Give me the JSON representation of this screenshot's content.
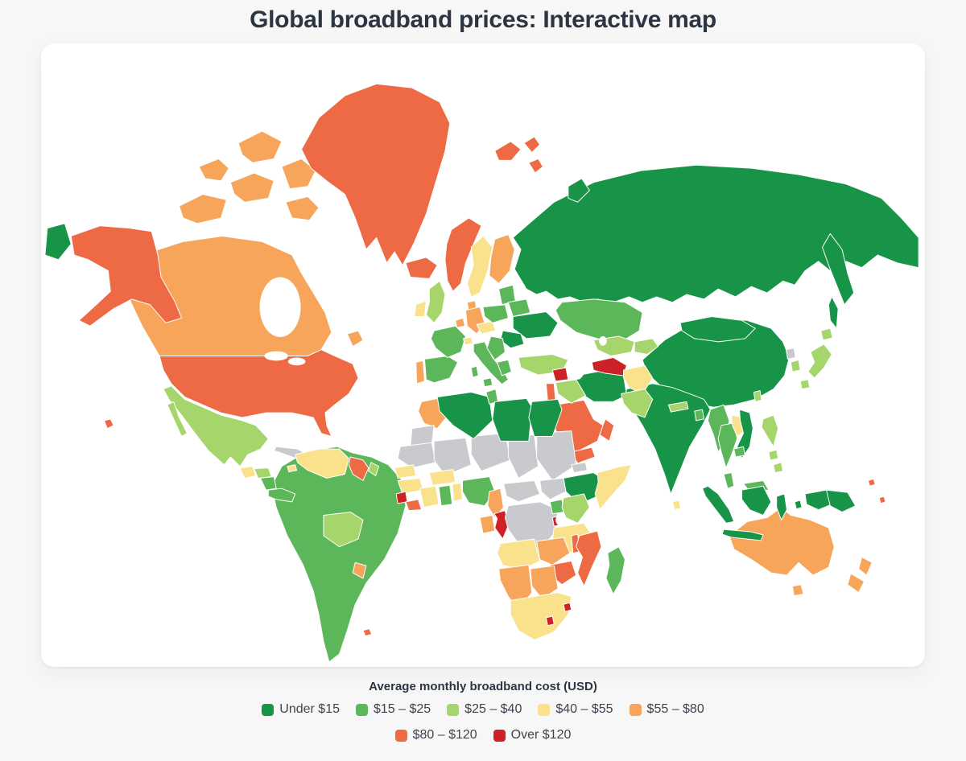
{
  "page": {
    "title": "Global broadband prices: Interactive map"
  },
  "chart_data": {
    "type": "choropleth-map",
    "title": "Global broadband prices: Interactive map",
    "legend_title": "Average monthly broadband cost (USD)",
    "categories": [
      {
        "id": "c1",
        "label": "Under $15",
        "color": "#179447"
      },
      {
        "id": "c2",
        "label": "$15 – $25",
        "color": "#5cb75a"
      },
      {
        "id": "c3",
        "label": "$25 – $40",
        "color": "#a5d56b"
      },
      {
        "id": "c4",
        "label": "$40 – $55",
        "color": "#fae28c"
      },
      {
        "id": "c5",
        "label": "$55 – $80",
        "color": "#f7a55a"
      },
      {
        "id": "c6",
        "label": "$80 – $120",
        "color": "#ed6a45"
      },
      {
        "id": "c7",
        "label": "Over $120",
        "color": "#cb2127"
      }
    ],
    "no_data_color": "#c9cacd",
    "legend_rows": [
      [
        "c1",
        "c2",
        "c3",
        "c4",
        "c5"
      ],
      [
        "c6",
        "c7"
      ]
    ],
    "regions": {
      "russia": "c1",
      "canada": "c5",
      "usa": "c6",
      "greenland": "c6",
      "iceland": "c6",
      "svalbard": "c6",
      "mexico": "c3",
      "guatemala": "c4",
      "honduras": "c3",
      "nicaragua": "c2",
      "costa_rica_panama": "c2",
      "cuba": "nodata",
      "jamaica": "c4",
      "haiti": "c6",
      "dominican_republic": "c2",
      "puerto_rico": "c5",
      "south_america_core": "c2",
      "venezuela": "c4",
      "guyana": "c6",
      "french_guiana": "c3",
      "bolivia": "c3",
      "uruguay": "c5",
      "falkland_islands": "c6",
      "norway": "c6",
      "sweden": "c4",
      "finland": "c5",
      "denmark": "c5",
      "uk": "c3",
      "ireland": "c4",
      "portugal": "c5",
      "spain": "c2",
      "france": "c2",
      "benelux": "c5",
      "germany": "c5",
      "switzerland": "c4",
      "italy": "c2",
      "austria_czechia": "c4",
      "poland": "c2",
      "baltics": "c2",
      "belarus": "c2",
      "ukraine": "c1",
      "romania": "c1",
      "balkans": "c2",
      "greece": "c2",
      "turkey": "c3",
      "syria": "c7",
      "iraq": "c3",
      "israel_jordan": "c6",
      "saudi_arabia": "c6",
      "yemen": "c6",
      "oman": "c6",
      "iran": "c1",
      "turkmenistan": "c7",
      "afghanistan": "c4",
      "pakistan": "c3",
      "kazakhstan": "c2",
      "uzbekistan": "c3",
      "kyrgyzstan_tajikistan": "c3",
      "india": "c1",
      "sri_lanka": "c4",
      "nepal": "c3",
      "bangladesh": "c2",
      "china": "c1",
      "mongolia": "c1",
      "myanmar": "c2",
      "thailand": "c2",
      "laos": "c4",
      "vietnam": "c1",
      "cambodia": "c2",
      "malaysia": "c2",
      "indonesia": "c1",
      "papua_new_guinea": "c1",
      "philippines": "c3",
      "taiwan": "c3",
      "south_korea": "c3",
      "north_korea": "nodata",
      "japan": "c3",
      "morocco": "c5",
      "western_sahara": "nodata",
      "mauritania": "nodata",
      "mali": "nodata",
      "niger": "nodata",
      "chad": "nodata",
      "sudan": "nodata",
      "algeria": "c1",
      "tunisia": "c2",
      "libya": "c1",
      "egypt": "c1",
      "eritrea": "nodata",
      "ethiopia": "c1",
      "somalia": "c4",
      "senegal": "c4",
      "guinea": "c4",
      "sierra_leone": "c7",
      "liberia": "c6",
      "ivory_coast": "c4",
      "ghana": "c2",
      "togo_benin": "c4",
      "burkina_faso": "c4",
      "nigeria": "c2",
      "cameroon": "c5",
      "central_african_republic": "nodata",
      "south_sudan": "nodata",
      "gabon": "c5",
      "congo": "c7",
      "dr_congo": "nodata",
      "uganda": "c2",
      "kenya": "c3",
      "rwanda_burundi": "c7",
      "tanzania": "c4",
      "angola": "c4",
      "zambia": "c5",
      "malawi": "c6",
      "mozambique": "c6",
      "zimbabwe": "c6",
      "namibia": "c5",
      "botswana": "c5",
      "south_africa": "c4",
      "lesotho": "c7",
      "eswatini": "c7",
      "madagascar": "c2",
      "australia": "c5",
      "new_zealand": "c5",
      "fiji_new_caledonia": "c6"
    }
  }
}
